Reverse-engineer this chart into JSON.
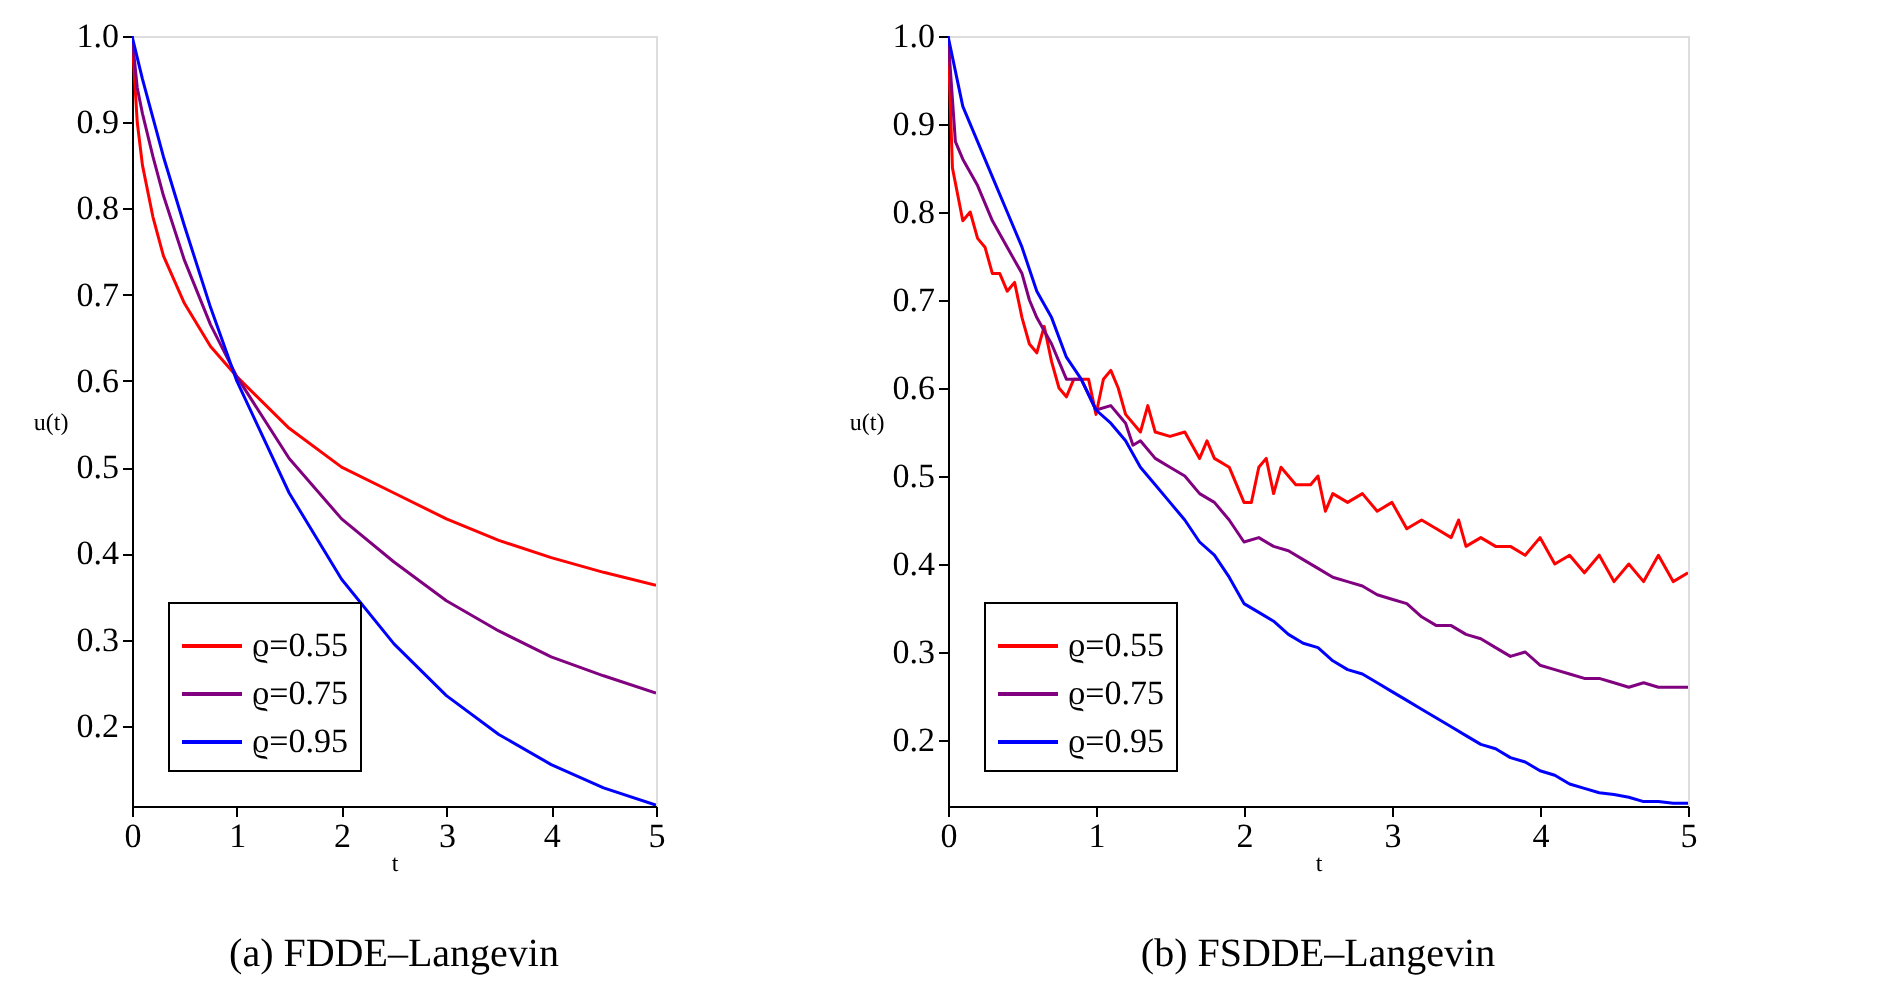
{
  "chart_data": [
    {
      "type": "line",
      "title": "(a) FDDE–Langevin",
      "xlabel": "t",
      "ylabel": "u(t)",
      "xlim": [
        0,
        5
      ],
      "ylim": [
        0.107,
        1.0
      ],
      "xticks": [
        0,
        1,
        2,
        3,
        4,
        5
      ],
      "yticks": [
        0.2,
        0.3,
        0.4,
        0.5,
        0.6,
        0.7,
        0.8,
        0.9,
        {
          "value": 1.0,
          "label": "1.0"
        }
      ],
      "grid": false,
      "legend": "bottom left",
      "line_style": "solid",
      "marker": "none",
      "x": [
        0,
        0.05,
        0.1,
        0.2,
        0.3,
        0.5,
        0.75,
        1,
        1.5,
        2,
        2.5,
        3,
        3.5,
        4,
        4.5,
        5
      ],
      "series": [
        {
          "name": "ϱ=0.55",
          "color": "#ff0000",
          "values": [
            1.0,
            0.9,
            0.85,
            0.79,
            0.745,
            0.69,
            0.64,
            0.605,
            0.545,
            0.5,
            0.47,
            0.44,
            0.415,
            0.395,
            0.378,
            0.363
          ]
        },
        {
          "name": "ϱ=0.75",
          "color": "#800080",
          "values": [
            1.0,
            0.94,
            0.91,
            0.86,
            0.815,
            0.74,
            0.665,
            0.605,
            0.51,
            0.44,
            0.39,
            0.345,
            0.31,
            0.28,
            0.258,
            0.238
          ]
        },
        {
          "name": "ϱ=0.95",
          "color": "#0000ff",
          "values": [
            1.0,
            0.975,
            0.95,
            0.905,
            0.86,
            0.78,
            0.685,
            0.6,
            0.47,
            0.37,
            0.295,
            0.235,
            0.19,
            0.155,
            0.128,
            0.108
          ]
        }
      ]
    },
    {
      "type": "line",
      "title": "(b) FSDDE–Langevin",
      "xlabel": "t",
      "ylabel": "u(t)",
      "xlim": [
        0,
        5
      ],
      "ylim": [
        0.125,
        1.0
      ],
      "xticks": [
        0,
        1,
        2,
        3,
        4,
        5
      ],
      "yticks": [
        0.2,
        0.3,
        0.4,
        0.5,
        0.6,
        0.7,
        0.8,
        0.9,
        {
          "value": 1.0,
          "label": "1.0"
        }
      ],
      "grid": false,
      "legend": "bottom left",
      "line_style": "solid",
      "marker": "none",
      "series": [
        {
          "name": "ϱ=0.55",
          "color": "#ff0000",
          "x": [
            0,
            0.03,
            0.1,
            0.15,
            0.2,
            0.25,
            0.3,
            0.35,
            0.4,
            0.45,
            0.5,
            0.55,
            0.6,
            0.65,
            0.7,
            0.75,
            0.8,
            0.85,
            0.9,
            0.95,
            1.0,
            1.05,
            1.1,
            1.15,
            1.2,
            1.3,
            1.35,
            1.4,
            1.5,
            1.6,
            1.7,
            1.75,
            1.8,
            1.9,
            2.0,
            2.05,
            2.1,
            2.15,
            2.2,
            2.25,
            2.35,
            2.45,
            2.5,
            2.55,
            2.6,
            2.7,
            2.8,
            2.9,
            3.0,
            3.1,
            3.2,
            3.3,
            3.4,
            3.45,
            3.5,
            3.6,
            3.7,
            3.8,
            3.9,
            4.0,
            4.1,
            4.2,
            4.3,
            4.4,
            4.5,
            4.6,
            4.7,
            4.8,
            4.9,
            5.0
          ],
          "values": [
            1.0,
            0.85,
            0.79,
            0.8,
            0.77,
            0.76,
            0.73,
            0.73,
            0.71,
            0.72,
            0.68,
            0.65,
            0.64,
            0.67,
            0.63,
            0.6,
            0.59,
            0.61,
            0.61,
            0.61,
            0.57,
            0.61,
            0.62,
            0.6,
            0.57,
            0.55,
            0.58,
            0.55,
            0.545,
            0.55,
            0.52,
            0.54,
            0.52,
            0.51,
            0.47,
            0.47,
            0.51,
            0.52,
            0.48,
            0.51,
            0.49,
            0.49,
            0.5,
            0.46,
            0.48,
            0.47,
            0.48,
            0.46,
            0.47,
            0.44,
            0.45,
            0.44,
            0.43,
            0.45,
            0.42,
            0.43,
            0.42,
            0.42,
            0.41,
            0.43,
            0.4,
            0.41,
            0.39,
            0.41,
            0.38,
            0.4,
            0.38,
            0.41,
            0.38,
            0.39
          ]
        },
        {
          "name": "ϱ=0.75",
          "color": "#800080",
          "x": [
            0,
            0.05,
            0.1,
            0.2,
            0.3,
            0.4,
            0.5,
            0.55,
            0.6,
            0.7,
            0.8,
            0.9,
            1.0,
            1.1,
            1.2,
            1.25,
            1.3,
            1.4,
            1.5,
            1.6,
            1.7,
            1.8,
            1.9,
            2.0,
            2.1,
            2.2,
            2.3,
            2.4,
            2.5,
            2.6,
            2.7,
            2.8,
            2.9,
            3.0,
            3.1,
            3.2,
            3.3,
            3.4,
            3.5,
            3.6,
            3.7,
            3.8,
            3.9,
            4.0,
            4.1,
            4.2,
            4.3,
            4.4,
            4.5,
            4.6,
            4.7,
            4.8,
            4.9,
            5.0
          ],
          "values": [
            1.0,
            0.88,
            0.86,
            0.83,
            0.79,
            0.76,
            0.73,
            0.7,
            0.68,
            0.65,
            0.61,
            0.61,
            0.575,
            0.58,
            0.56,
            0.535,
            0.54,
            0.52,
            0.51,
            0.5,
            0.48,
            0.47,
            0.45,
            0.425,
            0.43,
            0.42,
            0.415,
            0.405,
            0.395,
            0.385,
            0.38,
            0.375,
            0.365,
            0.36,
            0.355,
            0.34,
            0.33,
            0.33,
            0.32,
            0.315,
            0.305,
            0.295,
            0.3,
            0.285,
            0.28,
            0.275,
            0.27,
            0.27,
            0.265,
            0.26,
            0.265,
            0.26,
            0.26,
            0.26
          ]
        },
        {
          "name": "ϱ=0.95",
          "color": "#0000ff",
          "x": [
            0,
            0.1,
            0.2,
            0.3,
            0.4,
            0.5,
            0.6,
            0.7,
            0.8,
            0.9,
            1.0,
            1.1,
            1.2,
            1.3,
            1.4,
            1.5,
            1.6,
            1.7,
            1.8,
            1.9,
            2.0,
            2.1,
            2.2,
            2.3,
            2.4,
            2.5,
            2.6,
            2.7,
            2.8,
            2.9,
            3.0,
            3.1,
            3.2,
            3.3,
            3.4,
            3.5,
            3.6,
            3.7,
            3.8,
            3.9,
            4.0,
            4.1,
            4.2,
            4.3,
            4.4,
            4.5,
            4.6,
            4.7,
            4.8,
            4.9,
            5.0
          ],
          "values": [
            1.0,
            0.92,
            0.88,
            0.84,
            0.8,
            0.76,
            0.71,
            0.68,
            0.635,
            0.61,
            0.575,
            0.56,
            0.54,
            0.51,
            0.49,
            0.47,
            0.45,
            0.425,
            0.41,
            0.385,
            0.355,
            0.345,
            0.335,
            0.32,
            0.31,
            0.305,
            0.29,
            0.28,
            0.275,
            0.265,
            0.255,
            0.245,
            0.235,
            0.225,
            0.215,
            0.205,
            0.195,
            0.19,
            0.18,
            0.175,
            0.165,
            0.16,
            0.15,
            0.145,
            0.14,
            0.138,
            0.135,
            0.13,
            0.13,
            0.128,
            0.128
          ]
        }
      ]
    }
  ]
}
